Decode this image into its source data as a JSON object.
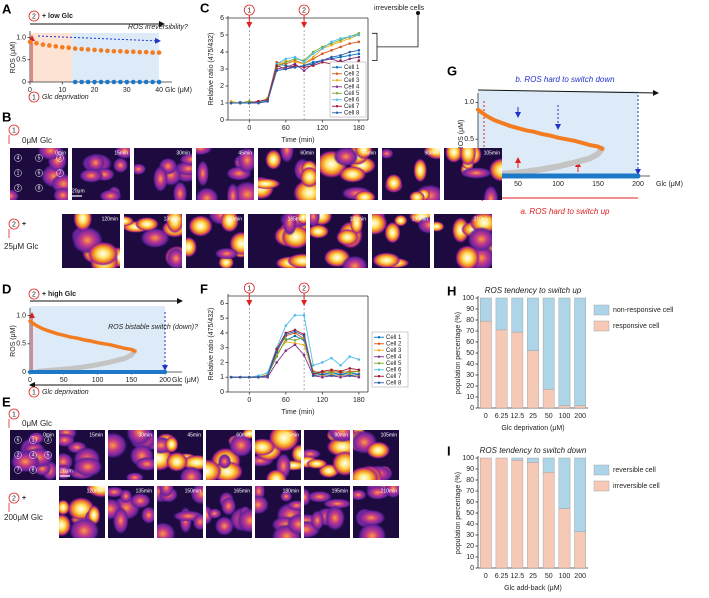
{
  "chart_data": [
    {
      "letter": "A",
      "type": "line",
      "xlim": [
        0,
        44
      ],
      "ylim": [
        0,
        1.1
      ],
      "xticks": [
        0,
        10,
        20,
        30,
        40
      ],
      "yticks": [
        0,
        0.5,
        {
          "value": 1,
          "label": "1.0"
        }
      ],
      "xlabel": "Glc (μM)",
      "ylabel": "ROS (μM)",
      "markers": [
        "2",
        "1"
      ],
      "annotations": [
        "+ low Glc",
        "ROS irreversibility?",
        "Glc deprivation"
      ],
      "series": [
        {
          "color": "#f47c20",
          "style": "dots",
          "x": [
            0,
            2,
            4,
            6,
            8,
            10,
            12,
            14,
            16,
            18,
            20,
            22,
            24,
            26,
            28,
            30,
            32,
            34,
            36,
            38,
            40
          ],
          "values": [
            0.9,
            0.87,
            0.84,
            0.82,
            0.8,
            0.78,
            0.77,
            0.75,
            0.74,
            0.73,
            0.72,
            0.71,
            0.7,
            0.69,
            0.69,
            0.68,
            0.68,
            0.67,
            0.67,
            0.66,
            0.66
          ]
        },
        {
          "color": "#1e78c8",
          "style": "dots",
          "x": [
            14,
            16,
            18,
            20,
            22,
            24,
            26,
            28,
            30,
            32,
            34,
            36,
            38,
            40
          ],
          "values": [
            0,
            0,
            0,
            0,
            0,
            0,
            0,
            0,
            0,
            0,
            0,
            0,
            0,
            0
          ]
        }
      ]
    },
    {
      "letter": "C",
      "type": "line",
      "box": true,
      "x": [
        -30,
        -15,
        0,
        15,
        30,
        45,
        60,
        75,
        90,
        105,
        120,
        135,
        150,
        165,
        180
      ],
      "xlim": [
        -35,
        195
      ],
      "ylim": [
        0,
        6
      ],
      "xticks": [
        0,
        60,
        120,
        180
      ],
      "yticks": [
        0,
        1,
        2,
        3,
        4,
        5,
        6
      ],
      "xlabel": "Time (min)",
      "ylabel": "Relative ratio (475/432)",
      "legend": "lower right",
      "events": [
        {
          "x": 0,
          "label": "1"
        },
        {
          "x": 90,
          "label": "2"
        }
      ],
      "annotations": [
        "irreversible cells"
      ],
      "series": [
        {
          "name": "Cell 1",
          "color": "#0072bd",
          "style": "line-markers",
          "values": [
            1,
            1.05,
            1,
            1.1,
            1.1,
            3.3,
            3.2,
            3.1,
            3.2,
            3.4,
            3.5,
            3.6,
            3.7,
            3.8,
            3.9
          ]
        },
        {
          "name": "Cell 2",
          "color": "#d95319",
          "style": "line-markers",
          "values": [
            1,
            1,
            1.1,
            1,
            1.2,
            3.4,
            3.3,
            3.5,
            3.3,
            3.6,
            3.9,
            4.1,
            4.3,
            4.5,
            4.6
          ]
        },
        {
          "name": "Cell 3",
          "color": "#edb120",
          "style": "line-markers",
          "values": [
            1.1,
            1,
            1,
            1,
            1.3,
            3.2,
            3.5,
            3.4,
            3.3,
            3.7,
            4.2,
            4.4,
            4.6,
            4.8,
            5
          ]
        },
        {
          "name": "Cell 4",
          "color": "#7e2f8e",
          "style": "line-markers",
          "values": [
            1,
            1,
            1,
            1,
            1.1,
            3,
            3.1,
            3.3,
            2.9,
            3.3,
            3.5,
            3.6,
            3.4,
            3.6,
            3.7
          ]
        },
        {
          "name": "Cell 5",
          "color": "#77ac30",
          "style": "line-markers",
          "values": [
            1,
            1,
            1.1,
            1,
            1.2,
            3.1,
            3.4,
            3.6,
            3.5,
            4,
            4.3,
            4.5,
            4.7,
            4.9,
            5.1
          ]
        },
        {
          "name": "Cell 6",
          "color": "#4dbeee",
          "style": "line-markers",
          "values": [
            1,
            1,
            1,
            1,
            1.2,
            3.3,
            3.6,
            3.7,
            3.4,
            3.9,
            4.2,
            4.6,
            4.8,
            4.9,
            5
          ]
        },
        {
          "name": "Cell 7",
          "color": "#a2142f",
          "style": "line-markers",
          "values": [
            1,
            1,
            1,
            1.1,
            1.2,
            3.2,
            3,
            3.2,
            3.1,
            3.2,
            3.4,
            3.3,
            3.5,
            3,
            3.5
          ]
        },
        {
          "name": "Cell 8",
          "color": "#2a5fb0",
          "style": "line-markers",
          "values": [
            1,
            1,
            1,
            1,
            1.1,
            2.9,
            3,
            3.1,
            3.2,
            3.3,
            3.5,
            3.7,
            3.8,
            4,
            4.1
          ]
        }
      ]
    },
    {
      "letter": "D",
      "type": "line",
      "xlim": [
        0,
        225
      ],
      "ylim": [
        0,
        1.1
      ],
      "xticks": [
        0,
        50,
        100,
        150,
        200
      ],
      "yticks": [
        0,
        0.5,
        {
          "value": 1,
          "label": "1.0"
        }
      ],
      "xlabel": "Glc (μM)",
      "ylabel": "ROS (μM)",
      "markers": [
        "2",
        "1"
      ],
      "annotations": [
        "+ high Glc",
        "ROS bistable switch (down)?",
        "Glc deprivation"
      ],
      "series": [
        {
          "color": "#c4c4c4",
          "style": "line",
          "width": 5,
          "x": [
            155,
            150,
            140,
            120,
            100,
            80,
            60,
            40,
            20,
            12
          ],
          "values": [
            0.37,
            0.3,
            0.24,
            0.18,
            0.13,
            0.09,
            0.06,
            0.04,
            0.02,
            0.01
          ]
        },
        {
          "color": "#f47c20",
          "style": "line",
          "width": 3.5,
          "x": [
            0,
            10,
            20,
            30,
            40,
            50,
            60,
            70,
            80,
            90,
            100,
            110,
            120,
            130,
            140,
            150,
            155
          ],
          "values": [
            0.9,
            0.82,
            0.76,
            0.72,
            0.68,
            0.65,
            0.62,
            0.6,
            0.57,
            0.55,
            0.52,
            0.5,
            0.48,
            0.45,
            0.42,
            0.4,
            0.37
          ]
        },
        {
          "color": "#1e78c8",
          "style": "line",
          "width": 4,
          "x": [
            0,
            200
          ],
          "values": [
            0,
            0
          ]
        }
      ]
    },
    {
      "letter": "F",
      "type": "line",
      "box": true,
      "x": [
        -30,
        -15,
        0,
        15,
        30,
        45,
        60,
        75,
        90,
        105,
        120,
        135,
        150,
        165,
        180
      ],
      "xlim": [
        -35,
        195
      ],
      "ylim": [
        0,
        6.5
      ],
      "xticks": [
        0,
        60,
        120,
        180
      ],
      "yticks": [
        0,
        1,
        2,
        3,
        4,
        5,
        6
      ],
      "xlabel": "Time (min)",
      "ylabel": "Relative ratio (475/432)",
      "legend": "right",
      "events": [
        {
          "x": 0,
          "label": "1"
        },
        {
          "x": 90,
          "label": "2"
        }
      ],
      "series": [
        {
          "name": "Cell 1",
          "color": "#0072bd",
          "style": "line-markers",
          "values": [
            1,
            1,
            1,
            1,
            1.1,
            2.5,
            3.5,
            3.8,
            3.5,
            1.3,
            1.2,
            1.3,
            1.2,
            1.3,
            1.2
          ]
        },
        {
          "name": "Cell 2",
          "color": "#d95319",
          "style": "line-markers",
          "values": [
            1,
            1,
            1,
            1,
            1.1,
            2.8,
            3.8,
            4,
            3.6,
            1.4,
            1.3,
            1.4,
            1.3,
            1.4,
            1.4
          ]
        },
        {
          "name": "Cell 3",
          "color": "#edb120",
          "style": "line-markers",
          "values": [
            1,
            1,
            1,
            1,
            1.2,
            2.6,
            3.4,
            3.3,
            3.2,
            1.2,
            1.1,
            1.2,
            1.1,
            1.2,
            1.1
          ]
        },
        {
          "name": "Cell 4",
          "color": "#7e2f8e",
          "style": "line-markers",
          "values": [
            1,
            1,
            1,
            1,
            1,
            2,
            2.8,
            3.2,
            2.5,
            1.1,
            1,
            1.1,
            1,
            1.1,
            1
          ]
        },
        {
          "name": "Cell 5",
          "color": "#77ac30",
          "style": "line-markers",
          "values": [
            1,
            1,
            1,
            1,
            1.1,
            2.4,
            3.6,
            3.5,
            3.7,
            1.3,
            1.4,
            1.3,
            1.4,
            1.3,
            1.4
          ]
        },
        {
          "name": "Cell 6",
          "color": "#4dbeee",
          "style": "line-markers",
          "values": [
            1,
            1,
            1,
            1.1,
            1.3,
            3,
            4.5,
            5.2,
            5.2,
            1.8,
            2,
            2.3,
            1.8,
            2.4,
            2.2
          ]
        },
        {
          "name": "Cell 7",
          "color": "#a2142f",
          "style": "line-markers",
          "values": [
            1,
            1,
            1,
            1,
            1.1,
            2.9,
            4,
            4.2,
            3.9,
            1.2,
            1.4,
            1.5,
            1.4,
            1.6,
            1.5
          ]
        },
        {
          "name": "Cell 8",
          "color": "#2a5fb0",
          "style": "line-markers",
          "values": [
            1,
            1,
            1,
            1,
            1.1,
            2.7,
            3.9,
            4.1,
            3.8,
            1.1,
            1.2,
            1.1,
            1.2,
            1.1,
            1.2
          ]
        }
      ]
    },
    {
      "letter": "G",
      "type": "line",
      "xlim": [
        0,
        215
      ],
      "ylim": [
        0,
        1.1
      ],
      "xticks": [
        0,
        50,
        100,
        150,
        200
      ],
      "yticks": [
        0,
        0.5,
        {
          "value": 1,
          "label": "1.0"
        }
      ],
      "xlabel": "Glc (μM)",
      "ylabel": "ROS (μM)",
      "annotations": [
        "b. ROS hard to switch down",
        "a. ROS hard to switch up"
      ],
      "series": [
        {
          "color": "#c4c4c4",
          "style": "line",
          "width": 6,
          "x": [
            155,
            150,
            140,
            120,
            100,
            80,
            60,
            40,
            20,
            12
          ],
          "values": [
            0.37,
            0.3,
            0.24,
            0.18,
            0.13,
            0.09,
            0.06,
            0.04,
            0.02,
            0.01
          ]
        },
        {
          "color": "#f47c20",
          "style": "line",
          "width": 4,
          "x": [
            0,
            10,
            20,
            30,
            40,
            50,
            60,
            70,
            80,
            90,
            100,
            110,
            120,
            130,
            140,
            150,
            155
          ],
          "values": [
            0.9,
            0.82,
            0.76,
            0.72,
            0.68,
            0.65,
            0.62,
            0.6,
            0.57,
            0.55,
            0.52,
            0.5,
            0.48,
            0.45,
            0.42,
            0.4,
            0.37
          ]
        },
        {
          "color": "#1e78c8",
          "style": "line",
          "width": 5,
          "x": [
            0,
            200
          ],
          "values": [
            0,
            0
          ]
        }
      ]
    },
    {
      "letter": "H",
      "type": "bar",
      "stacked": true,
      "title": "ROS tendency to switch up",
      "title_color": "#e02020",
      "categories": [
        "0",
        "6.25",
        "12.5",
        "25",
        "50",
        "100",
        "200"
      ],
      "ylim": [
        0,
        100
      ],
      "yticks": [
        0,
        10,
        20,
        30,
        40,
        50,
        60,
        70,
        80,
        90,
        100
      ],
      "xlabel": "Glc deprivation (μM)",
      "ylabel": "population percentage (%)",
      "legend": "right",
      "series": [
        {
          "name": "responsive cell",
          "color": "#f6c9b6",
          "values": [
            79,
            71,
            69,
            52,
            17,
            2,
            2
          ]
        },
        {
          "name": "non-responsive cell",
          "color": "#aed4e8",
          "values": [
            21,
            29,
            31,
            48,
            83,
            98,
            98
          ]
        }
      ]
    },
    {
      "letter": "I",
      "type": "bar",
      "stacked": true,
      "title": "ROS tendency to switch down",
      "title_color": "#2b3fd6",
      "categories": [
        "0",
        "6.25",
        "12.5",
        "25",
        "50",
        "100",
        "200"
      ],
      "ylim": [
        0,
        100
      ],
      "yticks": [
        0,
        10,
        20,
        30,
        40,
        50,
        60,
        70,
        80,
        90,
        100
      ],
      "xlabel": "Glc add-back (μM)",
      "ylabel": "population percentage (%)",
      "legend": "right",
      "series": [
        {
          "name": "irreversible cell",
          "color": "#f6c9b6",
          "values": [
            100,
            100,
            98,
            96,
            87,
            54,
            33
          ]
        },
        {
          "name": "reversible cell",
          "color": "#aed4e8",
          "values": [
            0,
            0,
            2,
            4,
            13,
            46,
            67
          ]
        }
      ]
    }
  ],
  "image_panels": [
    {
      "letter": "B",
      "scale_bar": "20μm",
      "cell_labels": [
        "4",
        "5",
        "3",
        "1",
        "6",
        "7",
        "2",
        "8"
      ],
      "rows": [
        {
          "marker": "1",
          "label": "0μM Glc",
          "times": [
            "0min",
            "15min",
            "30min",
            "45min",
            "60min",
            "75min",
            "90min",
            "105min"
          ]
        },
        {
          "marker": "2",
          "prefix": "+",
          "label": "25μM Glc",
          "times": [
            "120min",
            "135min",
            "150min",
            "165min",
            "180min",
            "195min",
            "210min"
          ]
        }
      ]
    },
    {
      "letter": "E",
      "scale_bar": "20μm",
      "cell_labels": [
        "6",
        "1",
        "3",
        "2",
        "4",
        "5",
        "7",
        "8"
      ],
      "rows": [
        {
          "marker": "1",
          "label": "0μM Glc",
          "times": [
            "0min",
            "15min",
            "30min",
            "45min",
            "60min",
            "75min",
            "90min",
            "105min"
          ]
        },
        {
          "marker": "2",
          "prefix": "+",
          "label": "200μM Glc",
          "times": [
            "120min",
            "135min",
            "150min",
            "165min",
            "180min",
            "195min",
            "210min"
          ]
        }
      ]
    }
  ]
}
